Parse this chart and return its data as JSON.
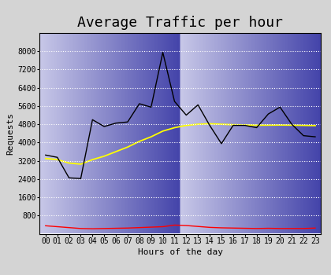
{
  "title": "Average Traffic per hour",
  "xlabel": "Hours of the day",
  "ylabel": "Requests",
  "hours": [
    0,
    1,
    2,
    3,
    4,
    5,
    6,
    7,
    8,
    9,
    10,
    11,
    12,
    13,
    14,
    15,
    16,
    17,
    18,
    19,
    20,
    21,
    22,
    23
  ],
  "black_line": [
    3450,
    3350,
    2450,
    2420,
    5000,
    4700,
    4850,
    4900,
    5700,
    5550,
    7950,
    5800,
    5200,
    5650,
    4750,
    3950,
    4750,
    4750,
    4650,
    5250,
    5550,
    4800,
    4300,
    4250
  ],
  "yellow_line": [
    3300,
    3250,
    3100,
    3050,
    3250,
    3400,
    3600,
    3800,
    4050,
    4250,
    4500,
    4650,
    4750,
    4800,
    4820,
    4800,
    4780,
    4770,
    4760,
    4760,
    4765,
    4760,
    4750,
    4740
  ],
  "red_line": [
    350,
    310,
    270,
    230,
    220,
    230,
    240,
    250,
    270,
    290,
    310,
    380,
    360,
    320,
    280,
    260,
    250,
    240,
    230,
    240,
    230,
    230,
    230,
    250
  ],
  "ylim": [
    0,
    8800
  ],
  "yticks": [
    800,
    1600,
    2400,
    3200,
    4000,
    4800,
    5600,
    6400,
    7200,
    8000
  ],
  "bg_top": "#c8c8e8",
  "bg_bottom": "#4444aa",
  "outer_bg": "#d4d4d4",
  "grid_color": "white",
  "title_fontsize": 13,
  "label_fontsize": 8,
  "tick_fontsize": 7
}
